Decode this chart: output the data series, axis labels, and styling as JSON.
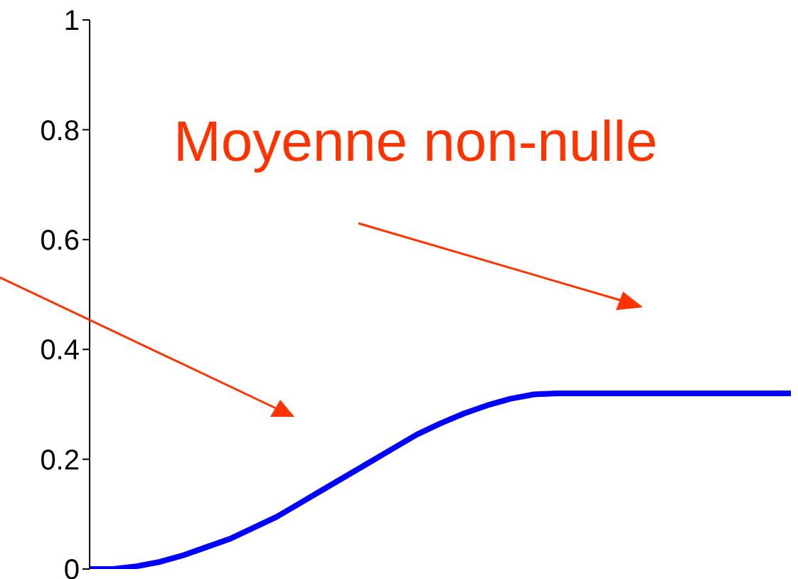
{
  "chart_data": {
    "type": "line",
    "categories": [
      null,
      null,
      null,
      null,
      null,
      null,
      null,
      null,
      null,
      null,
      null,
      null,
      null,
      null,
      null,
      null,
      null,
      null,
      null,
      null,
      null,
      null,
      null,
      null,
      null,
      null,
      null,
      null,
      null,
      null,
      null
    ],
    "series": [
      {
        "color": "#0000ff",
        "values": [
          0,
          0,
          0.005,
          0.013,
          0.025,
          0.04,
          0.055,
          0.075,
          0.095,
          0.12,
          0.145,
          0.17,
          0.195,
          0.22,
          0.245,
          0.265,
          0.283,
          0.298,
          0.31,
          0.318,
          0.32,
          0.32,
          0.32,
          0.32,
          0.32,
          0.32,
          0.32,
          0.32,
          0.32,
          0.32,
          0.32
        ]
      }
    ],
    "ylim": [
      0,
      1
    ],
    "yticks": [
      0,
      0.2,
      0.4,
      0.6,
      0.8,
      1
    ],
    "grid": false,
    "legend": false,
    "marker": "none",
    "line_style": "solid",
    "annotations": [
      "Moyenne non-nulle"
    ]
  }
}
